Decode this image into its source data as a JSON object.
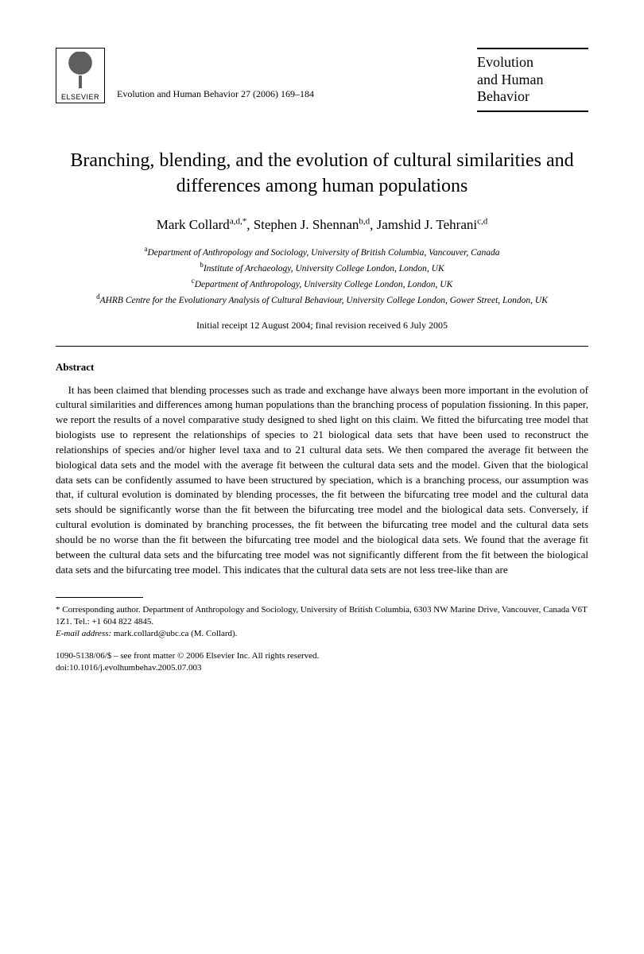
{
  "publisher": {
    "name": "ELSEVIER"
  },
  "journal_reference": "Evolution and Human Behavior 27 (2006) 169–184",
  "journal_box": {
    "line1": "Evolution",
    "line2": "and Human",
    "line3": "Behavior"
  },
  "title": "Branching, blending, and the evolution of cultural similarities and differences among human populations",
  "authors": [
    {
      "name": "Mark Collard",
      "marks": "a,d,*"
    },
    {
      "name": "Stephen J. Shennan",
      "marks": "b,d"
    },
    {
      "name": "Jamshid J. Tehrani",
      "marks": "c,d"
    }
  ],
  "affiliations": [
    {
      "mark": "a",
      "text": "Department of Anthropology and Sociology, University of British Columbia, Vancouver, Canada"
    },
    {
      "mark": "b",
      "text": "Institute of Archaeology, University College London, London, UK"
    },
    {
      "mark": "c",
      "text": "Department of Anthropology, University College London, London, UK"
    },
    {
      "mark": "d",
      "text": "AHRB Centre for the Evolutionary Analysis of Cultural Behaviour, University College London, Gower Street, London, UK"
    }
  ],
  "dates": "Initial receipt 12 August 2004; final revision received 6 July 2005",
  "abstract_heading": "Abstract",
  "abstract_body": "It has been claimed that blending processes such as trade and exchange have always been more important in the evolution of cultural similarities and differences among human populations than the branching process of population fissioning. In this paper, we report the results of a novel comparative study designed to shed light on this claim. We fitted the bifurcating tree model that biologists use to represent the relationships of species to 21 biological data sets that have been used to reconstruct the relationships of species and/or higher level taxa and to 21 cultural data sets. We then compared the average fit between the biological data sets and the model with the average fit between the cultural data sets and the model. Given that the biological data sets can be confidently assumed to have been structured by speciation, which is a branching process, our assumption was that, if cultural evolution is dominated by blending processes, the fit between the bifurcating tree model and the cultural data sets should be significantly worse than the fit between the bifurcating tree model and the biological data sets. Conversely, if cultural evolution is dominated by branching processes, the fit between the bifurcating tree model and the cultural data sets should be no worse than the fit between the bifurcating tree model and the biological data sets. We found that the average fit between the cultural data sets and the bifurcating tree model was not significantly different from the fit between the biological data sets and the bifurcating tree model. This indicates that the cultural data sets are not less tree-like than are",
  "footnote": {
    "corresponding": "* Corresponding author. Department of Anthropology and Sociology, University of British Columbia, 6303 NW Marine Drive, Vancouver, Canada V6T 1Z1. Tel.: +1 604 822 4845.",
    "email_label": "E-mail address:",
    "email": "mark.collard@ubc.ca (M. Collard)."
  },
  "copyright": {
    "line1": "1090-5138/06/$ – see front matter © 2006 Elsevier Inc. All rights reserved.",
    "line2": "doi:10.1016/j.evolhumbehav.2005.07.003"
  }
}
